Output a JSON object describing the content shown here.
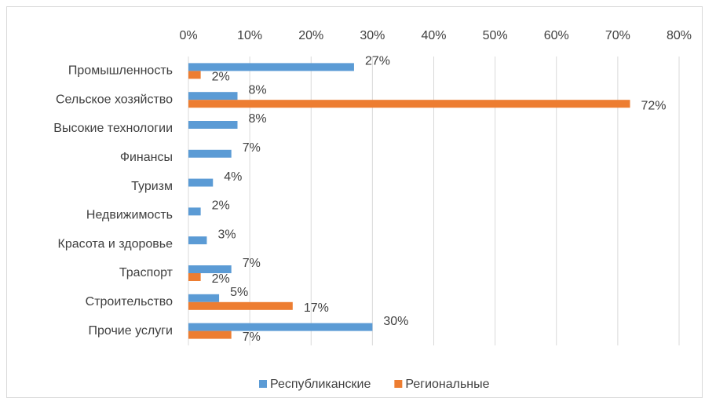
{
  "chart_data": {
    "type": "hbar",
    "categories": [
      "Промышленность",
      "Сельское хозяйство",
      "Высокие технологии",
      "Финансы",
      "Туризм",
      "Недвижимость",
      "Красота и здоровье",
      "Траспорт",
      "Строительство",
      "Прочие услуги"
    ],
    "series": [
      {
        "name": "Республиканские",
        "color": "#5b9bd5",
        "values": [
          27,
          8,
          8,
          7,
          4,
          2,
          3,
          7,
          5,
          30
        ],
        "value_labels": [
          "27%",
          "8%",
          "8%",
          "7%",
          "4%",
          "2%",
          "3%",
          "7%",
          "5%",
          "30%"
        ]
      },
      {
        "name": "Региональные",
        "color": "#ed7d31",
        "values": [
          2,
          72,
          null,
          null,
          null,
          null,
          null,
          2,
          17,
          7
        ],
        "value_labels": [
          "2%",
          "72%",
          null,
          null,
          null,
          null,
          null,
          "2%",
          "17%",
          "7%"
        ]
      }
    ],
    "xlim": [
      0,
      80
    ],
    "xticks": [
      {
        "value": 0,
        "label": "0%"
      },
      {
        "value": 10,
        "label": "10%"
      },
      {
        "value": 20,
        "label": "20%"
      },
      {
        "value": 30,
        "label": "30%"
      },
      {
        "value": 40,
        "label": "40%"
      },
      {
        "value": 50,
        "label": "50%"
      },
      {
        "value": 60,
        "label": "60%"
      },
      {
        "value": 70,
        "label": "70%"
      },
      {
        "value": 80,
        "label": "80%"
      }
    ],
    "grid": true,
    "legend": "bottom"
  }
}
